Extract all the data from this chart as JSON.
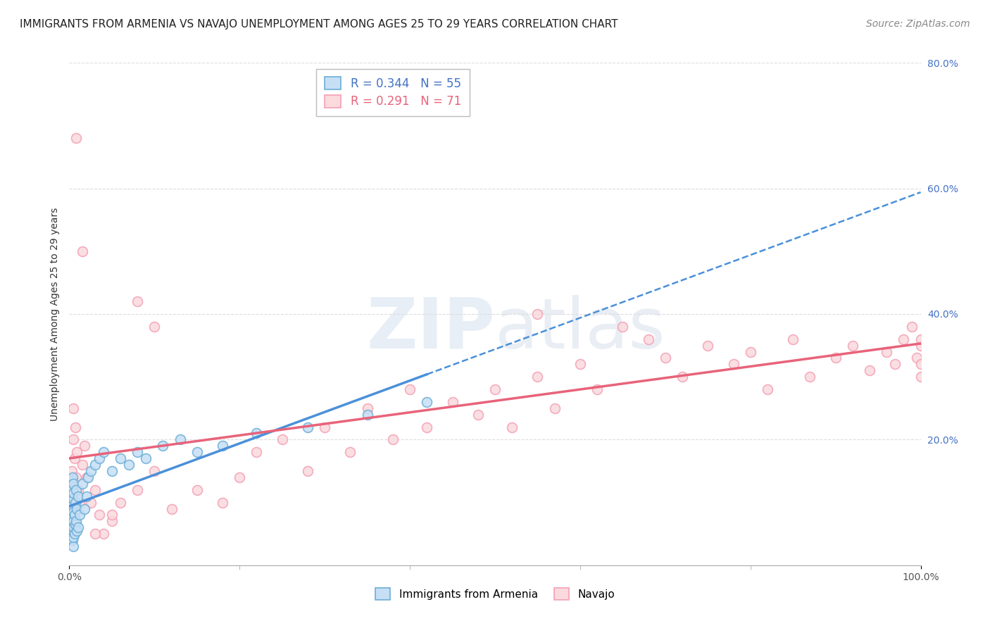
{
  "title": "IMMIGRANTS FROM ARMENIA VS NAVAJO UNEMPLOYMENT AMONG AGES 25 TO 29 YEARS CORRELATION CHART",
  "source": "Source: ZipAtlas.com",
  "ylabel": "Unemployment Among Ages 25 to 29 years",
  "xlim": [
    0,
    100
  ],
  "ylim": [
    0,
    80
  ],
  "yticks": [
    0,
    20,
    40,
    60,
    80
  ],
  "ytick_labels": [
    "",
    "20.0%",
    "40.0%",
    "60.0%",
    "80.0%"
  ],
  "color_blue_face": "#c6dff5",
  "color_blue_edge": "#6baed6",
  "color_pink_face": "#fadadd",
  "color_pink_edge": "#f4a0b5",
  "color_blue_line": "#4a90d9",
  "color_pink_line": "#e8637a",
  "background_color": "#ffffff",
  "title_fontsize": 11,
  "source_fontsize": 10,
  "axis_label_fontsize": 10,
  "legend_fontsize": 12,
  "marker_size": 100,
  "legend1_r": "0.344",
  "legend1_n": "55",
  "legend2_r": "0.291",
  "legend2_n": "71",
  "blue_x": [
    0.3,
    0.3,
    0.3,
    0.3,
    0.3,
    0.3,
    0.3,
    0.3,
    0.3,
    0.4,
    0.4,
    0.4,
    0.4,
    0.4,
    0.5,
    0.5,
    0.5,
    0.5,
    0.5,
    0.5,
    0.5,
    0.5,
    0.5,
    0.6,
    0.6,
    0.7,
    0.7,
    0.8,
    0.8,
    0.9,
    0.9,
    1.0,
    1.0,
    1.2,
    1.5,
    1.8,
    2.0,
    2.2,
    2.5,
    3.0,
    3.5,
    4.0,
    5.0,
    6.0,
    7.0,
    8.0,
    9.0,
    11.0,
    13.0,
    15.0,
    18.0,
    22.0,
    28.0,
    35.0,
    42.0
  ],
  "blue_y": [
    5.0,
    6.5,
    7.0,
    8.0,
    9.0,
    10.0,
    11.0,
    12.0,
    13.5,
    4.0,
    6.0,
    7.5,
    9.5,
    14.0,
    3.0,
    4.5,
    5.5,
    6.0,
    7.0,
    8.5,
    10.5,
    11.5,
    13.0,
    5.0,
    8.0,
    6.5,
    10.0,
    7.0,
    12.0,
    5.5,
    9.0,
    6.0,
    11.0,
    8.0,
    13.0,
    9.0,
    11.0,
    14.0,
    15.0,
    16.0,
    17.0,
    18.0,
    15.0,
    17.0,
    16.0,
    18.0,
    17.0,
    19.0,
    20.0,
    18.0,
    19.0,
    21.0,
    22.0,
    24.0,
    26.0
  ],
  "pink_x": [
    0.3,
    0.4,
    0.5,
    0.5,
    0.6,
    0.7,
    0.8,
    0.9,
    1.0,
    1.2,
    1.5,
    1.8,
    2.0,
    2.5,
    3.0,
    3.5,
    4.0,
    5.0,
    6.0,
    8.0,
    10.0,
    12.0,
    15.0,
    18.0,
    20.0,
    22.0,
    25.0,
    28.0,
    30.0,
    33.0,
    35.0,
    38.0,
    40.0,
    42.0,
    45.0,
    48.0,
    50.0,
    52.0,
    55.0,
    57.0,
    60.0,
    62.0,
    65.0,
    68.0,
    70.0,
    72.0,
    75.0,
    78.0,
    80.0,
    82.0,
    85.0,
    87.0,
    90.0,
    92.0,
    94.0,
    96.0,
    97.0,
    98.0,
    99.0,
    99.5,
    100.0,
    100.0,
    100.0,
    100.0,
    55.0,
    10.0,
    8.0,
    5.0,
    3.0,
    1.5,
    0.8
  ],
  "pink_y": [
    15.0,
    13.0,
    20.0,
    25.0,
    17.0,
    22.0,
    14.0,
    18.0,
    12.0,
    10.0,
    16.0,
    19.0,
    14.0,
    10.0,
    12.0,
    8.0,
    5.0,
    7.0,
    10.0,
    12.0,
    15.0,
    9.0,
    12.0,
    10.0,
    14.0,
    18.0,
    20.0,
    15.0,
    22.0,
    18.0,
    25.0,
    20.0,
    28.0,
    22.0,
    26.0,
    24.0,
    28.0,
    22.0,
    30.0,
    25.0,
    32.0,
    28.0,
    38.0,
    36.0,
    33.0,
    30.0,
    35.0,
    32.0,
    34.0,
    28.0,
    36.0,
    30.0,
    33.0,
    35.0,
    31.0,
    34.0,
    32.0,
    36.0,
    38.0,
    33.0,
    35.0,
    30.0,
    32.0,
    36.0,
    40.0,
    38.0,
    42.0,
    8.0,
    5.0,
    50.0,
    68.0
  ],
  "blue_line_x0": 0,
  "blue_line_x1": 42,
  "pink_line_x0": 0,
  "pink_line_x1": 100
}
